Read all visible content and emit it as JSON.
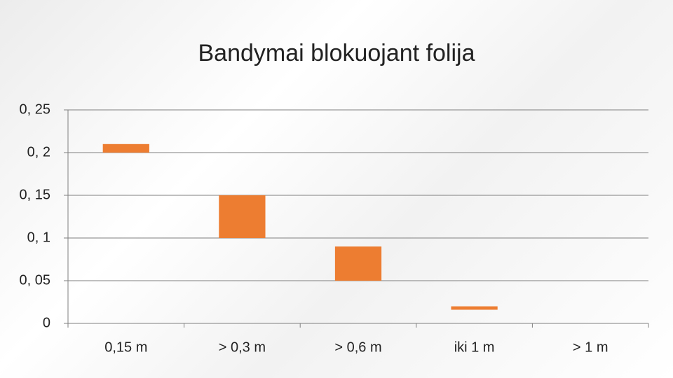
{
  "chart_data": {
    "type": "floating-bar",
    "title": "Bandymai blokuojant folija",
    "categories": [
      "0,15 m",
      "> 0,3 m",
      "> 0,6 m",
      "iki 1 m",
      "> 1 m"
    ],
    "low": [
      0.2,
      0.1,
      0.05,
      0.016,
      null
    ],
    "high": [
      0.21,
      0.15,
      0.09,
      0.02,
      null
    ],
    "color": "#ed7d31",
    "ylim": [
      0,
      0.25
    ],
    "yticks": [
      0,
      {
        "value": 0.05,
        "label": "0, 05"
      },
      {
        "value": 0.1,
        "label": "0, 1"
      },
      {
        "value": 0.15,
        "label": "0, 15"
      },
      {
        "value": 0.2,
        "label": "0, 2"
      },
      {
        "value": 0.25,
        "label": "0, 25"
      }
    ],
    "grid": true
  }
}
